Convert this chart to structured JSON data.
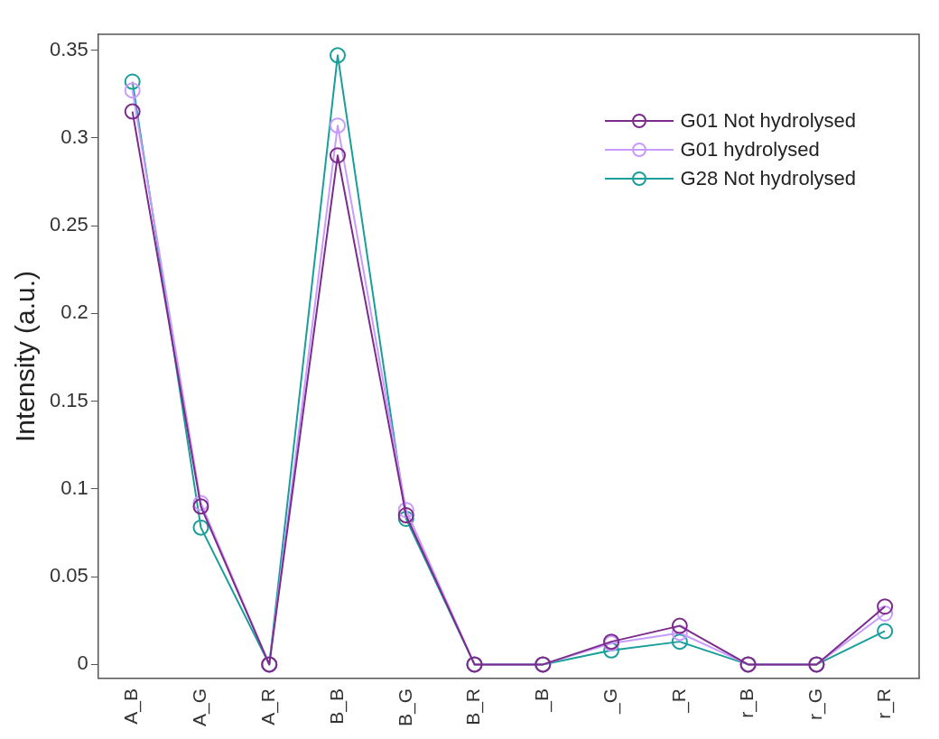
{
  "chart_data": {
    "type": "line",
    "ylabel": "Intensity (a.u.)",
    "categories": [
      "A_B",
      "A_G",
      "A_R",
      "B_B",
      "B_G",
      "B_R",
      "_B",
      "_G",
      "_R",
      "r_B",
      "r_G",
      "r_R"
    ],
    "series": [
      {
        "name": "G01 Not hydrolysed",
        "color": "#7b2c8a",
        "values": [
          0.315,
          0.09,
          0,
          0.29,
          0.085,
          0,
          0,
          0.013,
          0.022,
          0,
          0,
          0.033
        ]
      },
      {
        "name": "G01 hydrolysed",
        "color": "#c89bff",
        "values": [
          0.327,
          0.092,
          0,
          0.307,
          0.088,
          0,
          0,
          0.012,
          0.018,
          0,
          0,
          0.029
        ]
      },
      {
        "name": "G28 Not hydrolysed",
        "color": "#1a9e9a",
        "values": [
          0.332,
          0.078,
          0,
          0.347,
          0.083,
          0,
          0,
          0.008,
          0.013,
          0,
          0,
          0.019
        ]
      }
    ],
    "ylim": [
      -0.008,
      0.359
    ],
    "yticks": [
      0,
      0.05,
      0.1,
      0.15,
      0.2,
      0.25,
      0.3,
      0.35
    ],
    "grid": false,
    "legend": "top right",
    "marker": "circle",
    "line_style": "solid"
  }
}
